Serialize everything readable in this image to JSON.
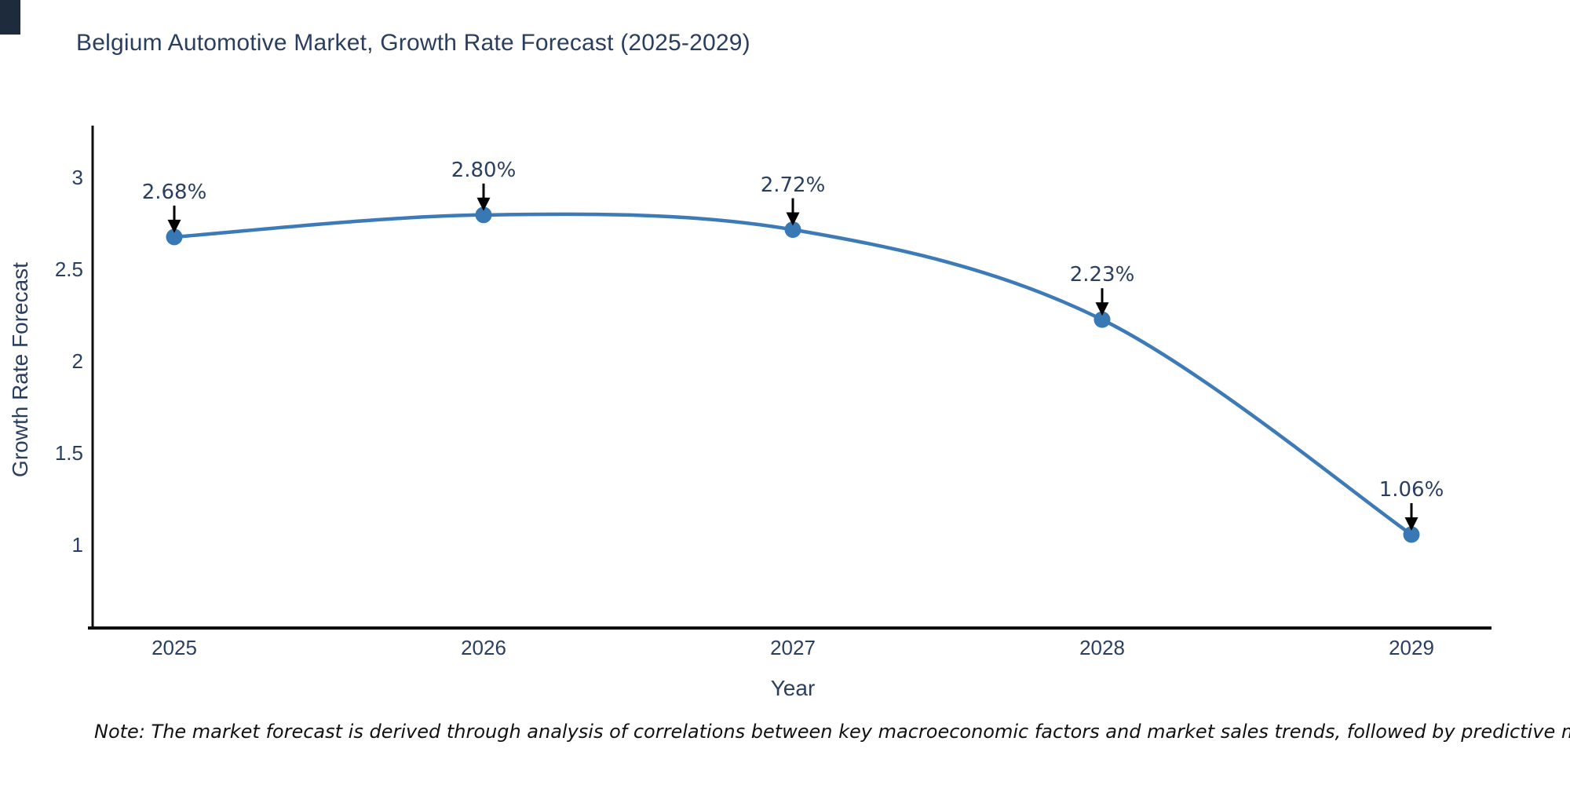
{
  "title": "Belgium Automotive Market, Growth Rate Forecast (2025-2029)",
  "footnote": "Note: The market forecast is derived through analysis of correlations between key macroeconomic factors and market sales trends, followed by predictive modeling to project future sales",
  "chart_data": {
    "type": "line",
    "title": "Belgium Automotive Market, Growth Rate Forecast (2025-2029)",
    "xlabel": "Year",
    "ylabel": "Growth Rate Forecast",
    "categories": [
      "2025",
      "2026",
      "2027",
      "2028",
      "2029"
    ],
    "series": [
      {
        "name": "Growth Rate Forecast",
        "values": [
          2.68,
          2.8,
          2.72,
          2.23,
          1.06
        ]
      }
    ],
    "point_labels": [
      "2.68%",
      "2.80%",
      "2.72%",
      "2.23%",
      "1.06%"
    ],
    "ytick_labels": [
      "3",
      "2.5",
      "2",
      "1.5",
      "1"
    ],
    "ytick_values": [
      3,
      2.5,
      2,
      1.5,
      1
    ],
    "ylim": [
      0.55,
      3.3
    ],
    "grid": false,
    "legend_position": "none",
    "line_shape": "spline",
    "line_color": "#3d7ab8",
    "marker_color": "#3878b4",
    "axis_color": "#0d0d0d",
    "text_color": "#2a3f5f",
    "annotation_arrow_color": "#000000"
  }
}
